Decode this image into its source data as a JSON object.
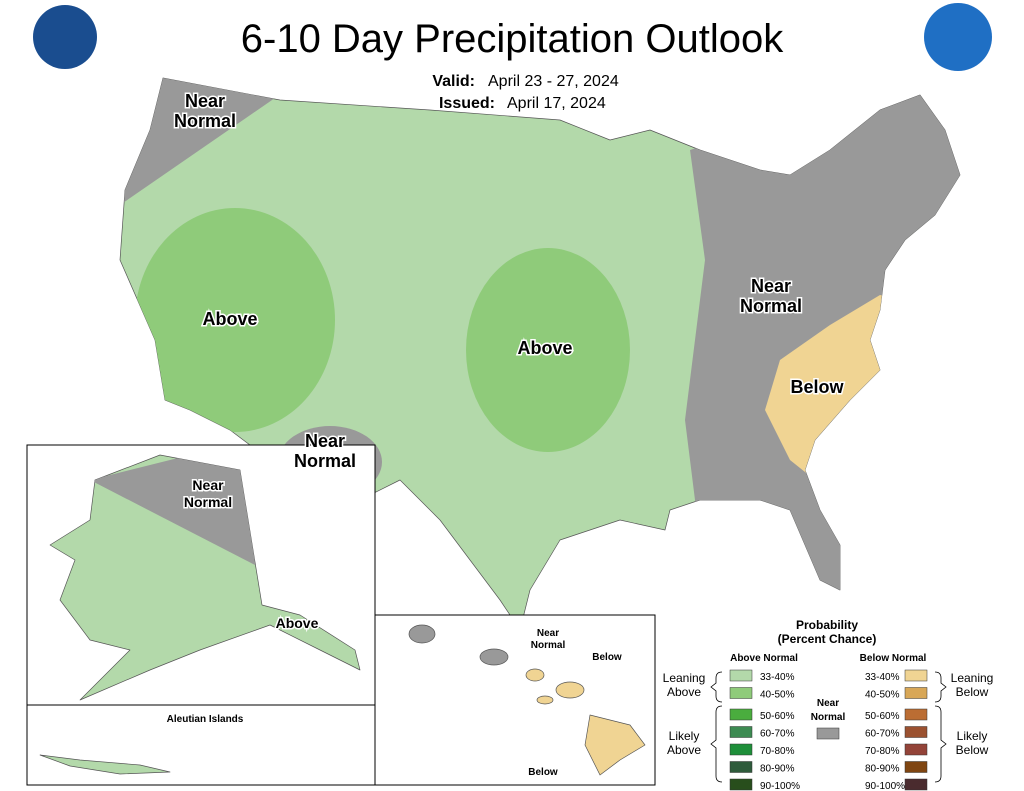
{
  "header": {
    "title": "6-10 Day Precipitation Outlook",
    "valid_label": "Valid:",
    "valid_value": "April 23 - 27, 2024",
    "issued_label": "Issued:",
    "issued_value": "April 17, 2024"
  },
  "map_labels": [
    {
      "lines": [
        "Near",
        "Normal"
      ]
    },
    {
      "lines": [
        "Above"
      ]
    },
    {
      "lines": [
        "Above"
      ]
    },
    {
      "lines": [
        "Near",
        "Normal"
      ]
    },
    {
      "lines": [
        "Below"
      ]
    },
    {
      "lines": [
        "Near",
        "Normal"
      ]
    },
    {
      "lines": [
        "Near",
        "Normal"
      ]
    },
    {
      "lines": [
        "Above"
      ]
    },
    {
      "lines": [
        "Aleutian Islands"
      ]
    },
    {
      "lines": [
        "Near",
        "Normal"
      ]
    },
    {
      "lines": [
        "Below"
      ]
    },
    {
      "lines": [
        "Below"
      ]
    }
  ],
  "legend": {
    "title": "Probability",
    "subtitle": "(Percent Chance)",
    "above_heading": "Above Normal",
    "below_heading": "Below Normal",
    "near_normal": [
      "Near",
      "Normal"
    ],
    "near_color": "#999999",
    "leaning_above": [
      "Leaning",
      "Above"
    ],
    "likely_above": [
      "Likely",
      "Above"
    ],
    "leaning_below": [
      "Leaning",
      "Below"
    ],
    "likely_below": [
      "Likely",
      "Below"
    ],
    "above": [
      {
        "range": "33-40%",
        "color": "#b3d9aa"
      },
      {
        "range": "40-50%",
        "color": "#8fcb7a"
      },
      {
        "range": "50-60%",
        "color": "#4aad3e"
      },
      {
        "range": "60-70%",
        "color": "#3d8b52"
      },
      {
        "range": "70-80%",
        "color": "#1e8f3a"
      },
      {
        "range": "80-90%",
        "color": "#2e5b3b"
      },
      {
        "range": "90-100%",
        "color": "#284e1c"
      }
    ],
    "below": [
      {
        "range": "33-40%",
        "color": "#f0d493"
      },
      {
        "range": "40-50%",
        "color": "#d8a757"
      },
      {
        "range": "50-60%",
        "color": "#bb6d33"
      },
      {
        "range": "60-70%",
        "color": "#9b5130"
      },
      {
        "range": "70-80%",
        "color": "#934338"
      },
      {
        "range": "80-90%",
        "color": "#7f4511"
      },
      {
        "range": "90-100%",
        "color": "#4a2b2e"
      }
    ]
  }
}
